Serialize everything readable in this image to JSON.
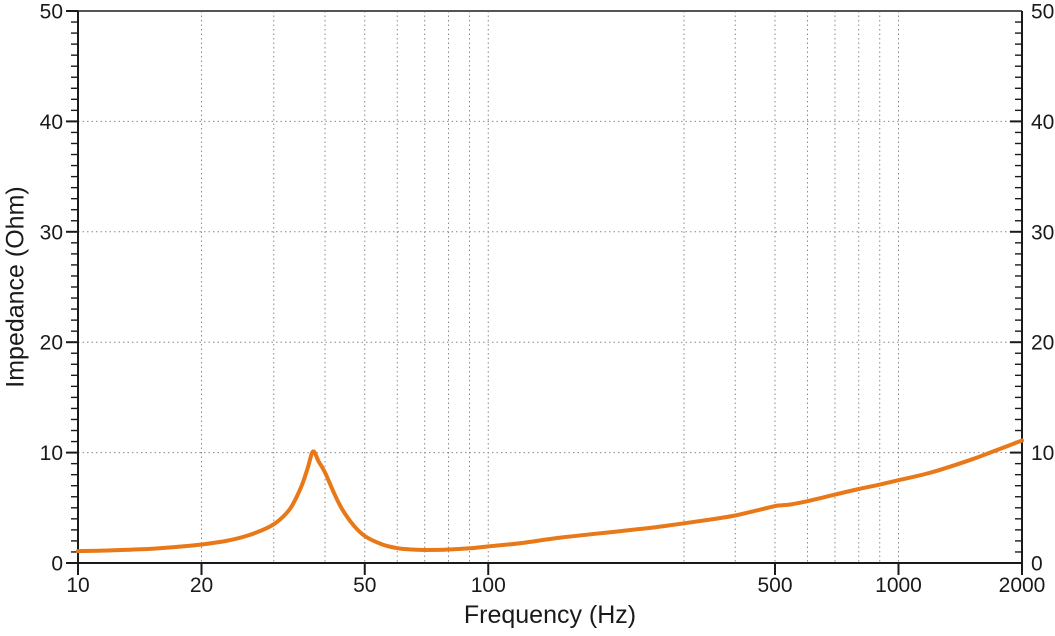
{
  "chart_data": {
    "type": "line",
    "title": "",
    "xlabel": "Frequency (Hz)",
    "ylabel": "Impedance (Ohm)",
    "x_scale": "log",
    "x_range": [
      10,
      2000
    ],
    "y_range": [
      0,
      50
    ],
    "x_major_ticks": [
      10,
      20,
      50,
      100,
      500,
      1000,
      2000
    ],
    "x_tick_labels": [
      "10",
      "20",
      "50",
      "100",
      "500",
      "1000",
      "2000"
    ],
    "x_gridlines": [
      20,
      30,
      40,
      50,
      60,
      70,
      80,
      90,
      100,
      300,
      400,
      500,
      600,
      700,
      800,
      900,
      1000
    ],
    "y_major_ticks": [
      0,
      10,
      20,
      30,
      40,
      50
    ],
    "y_tick_labels": [
      "0",
      "10",
      "20",
      "30",
      "40",
      "50"
    ],
    "y_minor_step": 1,
    "y_gridlines": [
      10,
      20,
      30,
      40
    ],
    "grid_on": true,
    "legend": "none",
    "colors": {
      "curve": "#E87818",
      "grid": "#8a8a8a",
      "axis": "#1a1a1a",
      "frame_top": "#555555",
      "text": "#1a1a1a",
      "background": "#ffffff"
    },
    "series": [
      {
        "name": "impedance",
        "points": [
          [
            10,
            1.08
          ],
          [
            12,
            1.14
          ],
          [
            15,
            1.28
          ],
          [
            18,
            1.5
          ],
          [
            20,
            1.68
          ],
          [
            23,
            2.0
          ],
          [
            26,
            2.5
          ],
          [
            29,
            3.2
          ],
          [
            31,
            3.9
          ],
          [
            33,
            5.0
          ],
          [
            35,
            6.9
          ],
          [
            36.3,
            8.6
          ],
          [
            37.4,
            10.1
          ],
          [
            38.6,
            9.2
          ],
          [
            40,
            8.2
          ],
          [
            42,
            6.4
          ],
          [
            44,
            4.9
          ],
          [
            47,
            3.4
          ],
          [
            50,
            2.45
          ],
          [
            55,
            1.7
          ],
          [
            60,
            1.35
          ],
          [
            65,
            1.22
          ],
          [
            70,
            1.18
          ],
          [
            75,
            1.19
          ],
          [
            80,
            1.22
          ],
          [
            90,
            1.33
          ],
          [
            100,
            1.5
          ],
          [
            120,
            1.8
          ],
          [
            150,
            2.3
          ],
          [
            200,
            2.8
          ],
          [
            250,
            3.2
          ],
          [
            300,
            3.6
          ],
          [
            350,
            3.95
          ],
          [
            400,
            4.3
          ],
          [
            450,
            4.75
          ],
          [
            500,
            5.15
          ],
          [
            545,
            5.3
          ],
          [
            600,
            5.6
          ],
          [
            700,
            6.2
          ],
          [
            800,
            6.7
          ],
          [
            900,
            7.1
          ],
          [
            1000,
            7.5
          ],
          [
            1200,
            8.2
          ],
          [
            1500,
            9.35
          ],
          [
            1700,
            10.1
          ],
          [
            2000,
            11.1
          ]
        ]
      }
    ]
  }
}
